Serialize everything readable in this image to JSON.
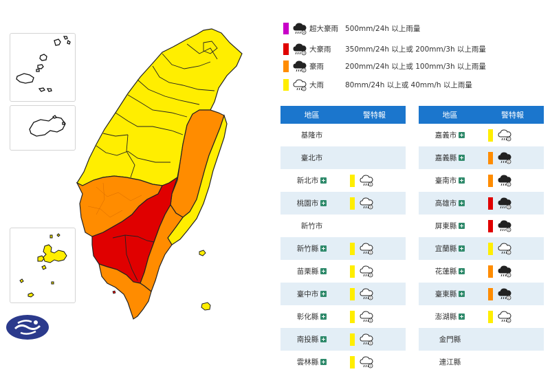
{
  "legend": [
    {
      "name": "超大豪雨",
      "desc": "500mm/24h 以上雨量",
      "color": "#c800c8",
      "icon": "extreme-torrential-rain-icon"
    },
    {
      "name": "大豪雨",
      "desc": "350mm/24h 以上或 200mm/3h 以上雨量",
      "color": "#e00000",
      "icon": "extremely-heavy-rain-icon"
    },
    {
      "name": "豪雨",
      "desc": "200mm/24h 以上或 100mm/3h 以上雨量",
      "color": "#ff8c00",
      "icon": "torrential-rain-icon"
    },
    {
      "name": "大雨",
      "desc": "80mm/24h 以上或 40mm/h 以上雨量",
      "color": "#ffee00",
      "icon": "heavy-rain-icon"
    }
  ],
  "table_headers": {
    "region": "地區",
    "warning": "警特報"
  },
  "left_table": [
    {
      "region": "基隆市",
      "level": null,
      "detail": false
    },
    {
      "region": "臺北市",
      "level": null,
      "detail": false
    },
    {
      "region": "新北市",
      "level": "大雨",
      "detail": true
    },
    {
      "region": "桃園市",
      "level": "大雨",
      "detail": true
    },
    {
      "region": "新竹市",
      "level": null,
      "detail": false
    },
    {
      "region": "新竹縣",
      "level": "大雨",
      "detail": true
    },
    {
      "region": "苗栗縣",
      "level": "大雨",
      "detail": true
    },
    {
      "region": "臺中市",
      "level": "大雨",
      "detail": true
    },
    {
      "region": "彰化縣",
      "level": "大雨",
      "detail": true
    },
    {
      "region": "南投縣",
      "level": "大雨",
      "detail": true
    },
    {
      "region": "雲林縣",
      "level": "大雨",
      "detail": true
    }
  ],
  "right_table": [
    {
      "region": "嘉義市",
      "level": "大雨",
      "detail": true
    },
    {
      "region": "嘉義縣",
      "level": "豪雨",
      "detail": true
    },
    {
      "region": "臺南市",
      "level": "豪雨",
      "detail": true
    },
    {
      "region": "高雄市",
      "level": "大豪雨",
      "detail": true
    },
    {
      "region": "屏東縣",
      "level": "大豪雨",
      "detail": true
    },
    {
      "region": "宜蘭縣",
      "level": "大雨",
      "detail": true
    },
    {
      "region": "花蓮縣",
      "level": "豪雨",
      "detail": true
    },
    {
      "region": "臺東縣",
      "level": "豪雨",
      "detail": true
    },
    {
      "region": "澎湖縣",
      "level": "大雨",
      "detail": true
    },
    {
      "region": "金門縣",
      "level": null,
      "detail": false
    },
    {
      "region": "連江縣",
      "level": null,
      "detail": false
    }
  ],
  "map": {
    "regions": [
      {
        "name": "north",
        "level": "大雨"
      },
      {
        "name": "central-west",
        "level": "大雨"
      },
      {
        "name": "east-mountain",
        "level": "豪雨"
      },
      {
        "name": "chiayi-tainan",
        "level": "豪雨"
      },
      {
        "name": "kaohsiung-pingtung",
        "level": "大豪雨"
      },
      {
        "name": "south-tip",
        "level": "豪雨"
      }
    ]
  }
}
